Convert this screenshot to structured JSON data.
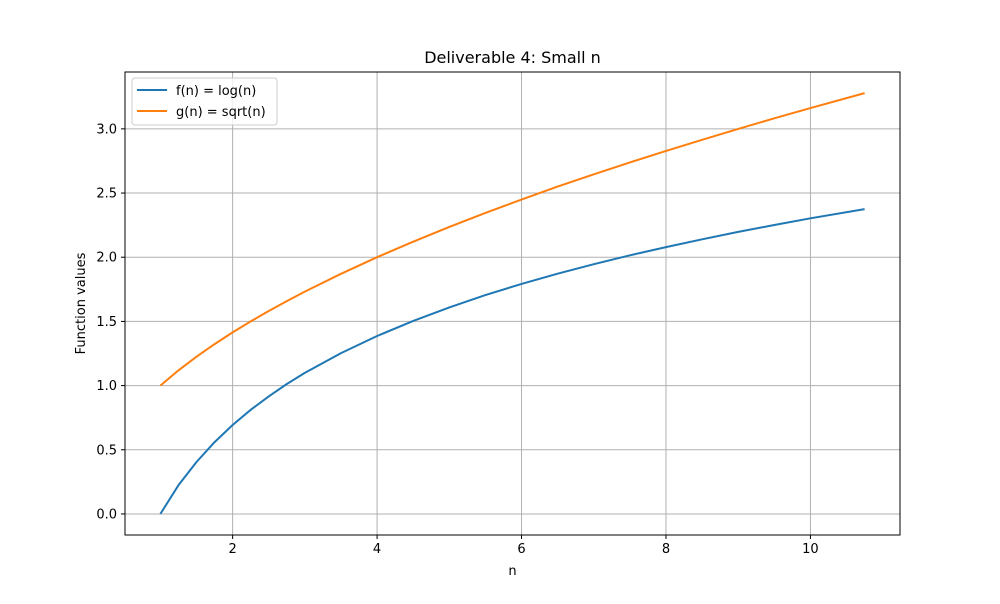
{
  "chart_data": {
    "type": "line",
    "title": "Deliverable 4: Small n",
    "xlabel": "n",
    "ylabel": "Function values",
    "xlim": [
      0.51,
      11.24
    ],
    "ylim": [
      -0.164,
      3.443
    ],
    "xticks": [
      2,
      4,
      6,
      8,
      10
    ],
    "xtick_labels": [
      "2",
      "4",
      "6",
      "8",
      "10"
    ],
    "yticks": [
      0.0,
      0.5,
      1.0,
      1.5,
      2.0,
      2.5,
      3.0
    ],
    "ytick_labels": [
      "0.0",
      "0.5",
      "1.0",
      "1.5",
      "2.0",
      "2.5",
      "3.0"
    ],
    "grid": true,
    "legend": "top-left",
    "x": [
      1.0,
      1.25,
      1.5,
      1.75,
      2.0,
      2.25,
      2.5,
      2.75,
      3.0,
      3.5,
      4.0,
      4.5,
      5.0,
      5.5,
      6.0,
      6.5,
      7.0,
      7.5,
      8.0,
      8.5,
      9.0,
      9.5,
      10.0,
      10.75
    ],
    "series": [
      {
        "name": "f(n) = log(n)",
        "color": "#1f77b4",
        "values": [
          0.0,
          0.223,
          0.405,
          0.56,
          0.693,
          0.811,
          0.916,
          1.012,
          1.099,
          1.253,
          1.386,
          1.504,
          1.609,
          1.705,
          1.792,
          1.872,
          1.946,
          2.015,
          2.079,
          2.14,
          2.197,
          2.251,
          2.303,
          2.375
        ]
      },
      {
        "name": "g(n) = sqrt(n)",
        "color": "#ff7f0e",
        "values": [
          1.0,
          1.118,
          1.225,
          1.323,
          1.414,
          1.5,
          1.581,
          1.658,
          1.732,
          1.871,
          2.0,
          2.121,
          2.236,
          2.345,
          2.449,
          2.55,
          2.646,
          2.739,
          2.828,
          2.915,
          3.0,
          3.082,
          3.162,
          3.279
        ]
      }
    ]
  }
}
